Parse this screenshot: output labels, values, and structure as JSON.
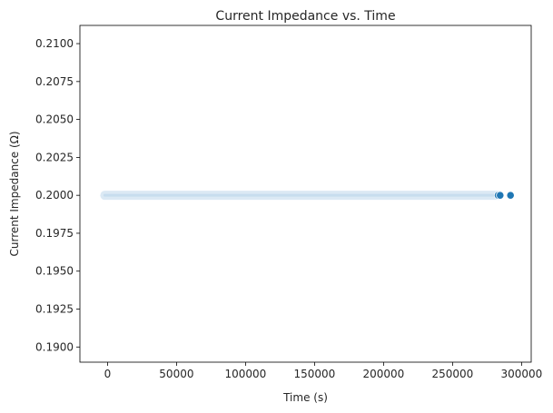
{
  "chart_data": {
    "type": "scatter",
    "title": "Current Impedance vs. Time",
    "xlabel": "Time (s)",
    "ylabel": "Current Impedance (Ω)",
    "xlim": [
      -20000,
      307000
    ],
    "ylim": [
      0.189,
      0.2112
    ],
    "xticks": [
      0,
      50000,
      100000,
      150000,
      200000,
      250000,
      300000
    ],
    "xtick_labels": [
      "0",
      "50000",
      "100000",
      "150000",
      "200000",
      "250000",
      "300000"
    ],
    "yticks": [
      0.19,
      0.1925,
      0.195,
      0.1975,
      0.2,
      0.2025,
      0.205,
      0.2075,
      0.21
    ],
    "ytick_labels": [
      "0.1900",
      "0.1925",
      "0.1950",
      "0.1975",
      "0.2000",
      "0.2025",
      "0.2050",
      "0.2075",
      "0.2100"
    ],
    "grid": false,
    "point_color": "#1f77b4",
    "band_color": "#cfe1f0",
    "series": [
      {
        "values_constant": 0.2,
        "x_start": 0,
        "x_end": 284000,
        "points": [
          {
            "x": 283000,
            "y": 0.2
          },
          {
            "x": 284500,
            "y": 0.2
          },
          {
            "x": 292000,
            "y": 0.2
          }
        ]
      }
    ]
  }
}
